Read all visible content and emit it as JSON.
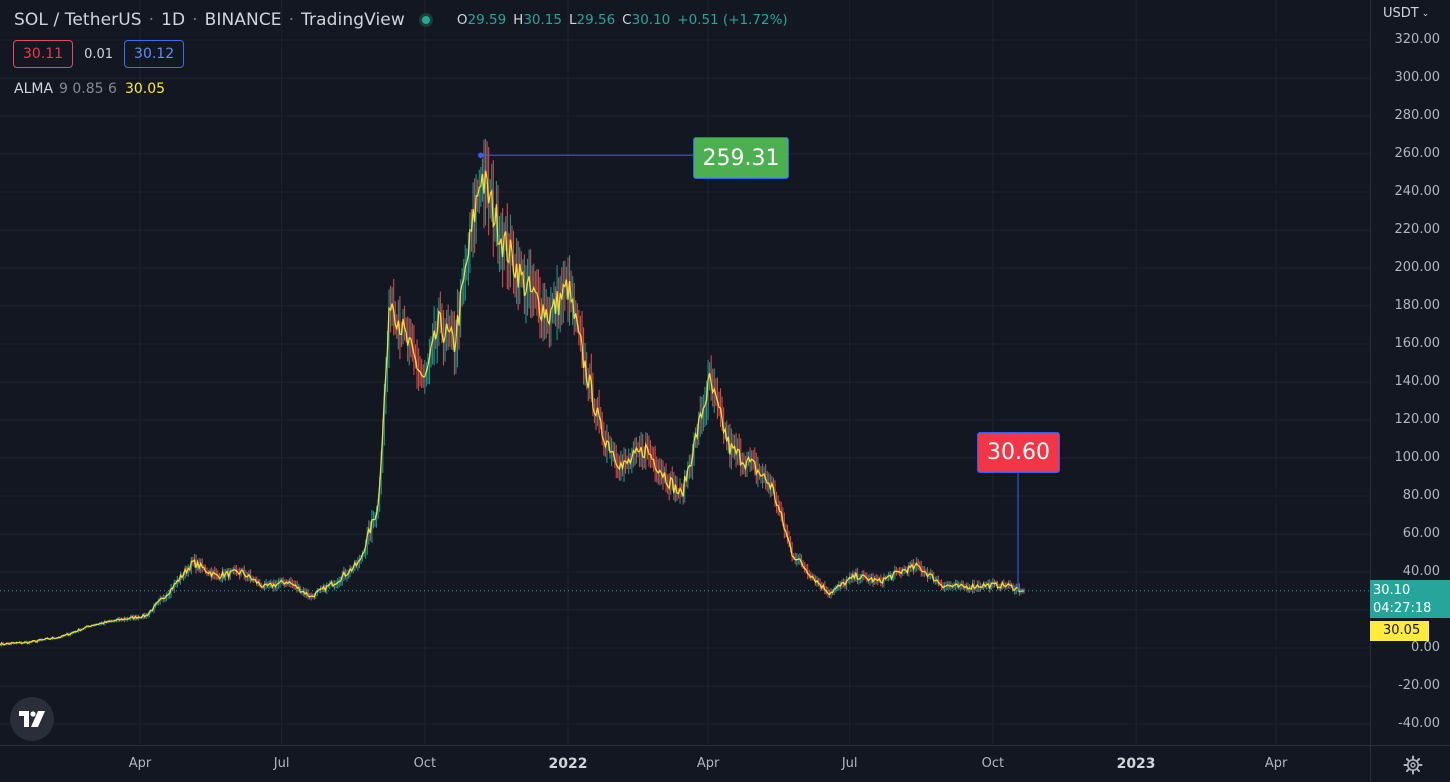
{
  "header": {
    "symbol": "SOL / TetherUS",
    "interval": "1D",
    "exchange": "BINANCE",
    "provider": "TradingView",
    "ohlc": {
      "o_label": "O",
      "o": "29.59",
      "h_label": "H",
      "h": "30.15",
      "l_label": "L",
      "l": "29.56",
      "c_label": "C",
      "c": "30.10",
      "change": "+0.51 (+1.72%)"
    }
  },
  "quote": {
    "sell": "30.11",
    "spread": "0.01",
    "buy": "30.12"
  },
  "indicator": {
    "name": "ALMA",
    "params": "9 0.85 6",
    "value": "30.05"
  },
  "currency": "USDT",
  "price_axis": {
    "labels": [
      "320.00",
      "300.00",
      "280.00",
      "260.00",
      "240.00",
      "220.00",
      "200.00",
      "180.00",
      "160.00",
      "140.00",
      "120.00",
      "100.00",
      "80.00",
      "60.00",
      "40.00",
      "0.00",
      "-20.00",
      "-40.00"
    ],
    "last_price": "30.10",
    "countdown": "04:27:18",
    "alma_value": "30.05"
  },
  "time_axis": {
    "labels": [
      "Apr",
      "Jul",
      "Oct",
      "2022",
      "Apr",
      "Jul",
      "Oct",
      "2023",
      "Apr"
    ]
  },
  "markers": {
    "high": "259.31",
    "low": "30.60"
  },
  "colors": {
    "background": "#131722",
    "up": "#26a69a",
    "down": "#ef5350",
    "alma": "#ffeb3b",
    "high_marker": "#4caf50",
    "low_marker": "#f23645",
    "accent_line": "#2962ff"
  },
  "icons": {
    "logo": "tradingview-logo-icon",
    "settings": "gear-icon",
    "status": "market-open-icon"
  },
  "chart_data": {
    "type": "line",
    "title": "SOL / TetherUS",
    "xlabel": "",
    "ylabel": "",
    "ylim": [
      -40,
      320
    ],
    "x": [
      "2021-01-01",
      "2021-01-20",
      "2021-02-10",
      "2021-03-01",
      "2021-03-20",
      "2021-04-05",
      "2021-04-20",
      "2021-05-05",
      "2021-05-20",
      "2021-06-05",
      "2021-06-20",
      "2021-07-05",
      "2021-07-20",
      "2021-08-05",
      "2021-08-20",
      "2021-09-01",
      "2021-09-09",
      "2021-09-20",
      "2021-10-01",
      "2021-10-10",
      "2021-10-20",
      "2021-11-06",
      "2021-11-20",
      "2021-12-05",
      "2021-12-20",
      "2022-01-01",
      "2022-01-10",
      "2022-01-22",
      "2022-02-05",
      "2022-02-20",
      "2022-03-05",
      "2022-03-15",
      "2022-04-02",
      "2022-04-15",
      "2022-05-01",
      "2022-05-12",
      "2022-05-25",
      "2022-06-10",
      "2022-06-18",
      "2022-07-05",
      "2022-07-20",
      "2022-08-05",
      "2022-08-14",
      "2022-08-30",
      "2022-09-12",
      "2022-09-25",
      "2022-10-10",
      "2022-10-21"
    ],
    "series": [
      {
        "values": [
          2,
          3,
          6,
          12,
          15,
          17,
          30,
          45,
          38,
          40,
          32,
          35,
          27,
          35,
          45,
          75,
          185,
          160,
          140,
          170,
          160,
          250,
          215,
          190,
          175,
          190,
          155,
          115,
          95,
          105,
          90,
          80,
          140,
          105,
          95,
          85,
          50,
          35,
          29,
          38,
          35,
          41,
          43,
          33,
          32,
          33,
          33,
          30
        ]
      }
    ],
    "annotations": [
      {
        "label": "259.31",
        "date": "2021-11-06",
        "value": 259.31
      },
      {
        "label": "30.60",
        "date": "2022-10-21",
        "value": 30.6
      }
    ],
    "last_value": 30.1,
    "grid": true
  }
}
